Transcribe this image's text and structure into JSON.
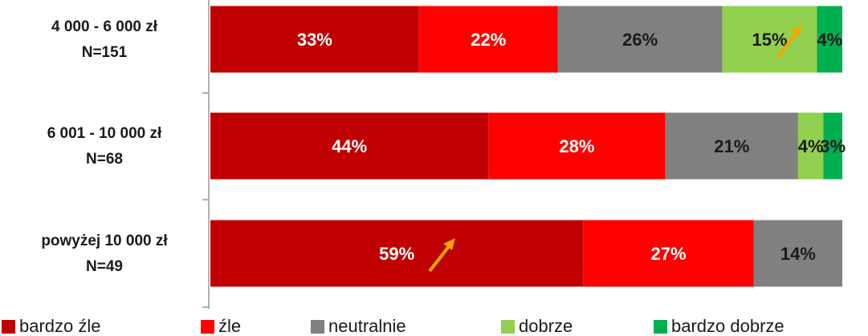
{
  "chart_data": {
    "type": "stacked-bar-horizontal",
    "categories": [
      [
        "4 000 - 6 000 zł",
        "N=151"
      ],
      [
        "6 001 - 10 000 zł",
        "N=68"
      ],
      [
        "powyżej 10 000 zł",
        "N=49"
      ]
    ],
    "series": [
      {
        "name": "bardzo źle",
        "color": "#c00000",
        "label_color": "#ffffff",
        "values": [
          33,
          44,
          59
        ],
        "value_labels": [
          "33%",
          "44%",
          "59%"
        ]
      },
      {
        "name": "źle",
        "color": "#ff0000",
        "label_color": "#ffffff",
        "values": [
          22,
          28,
          27
        ],
        "value_labels": [
          "22%",
          "28%",
          "27%"
        ]
      },
      {
        "name": "neutralnie",
        "color": "#808080",
        "label_color": "#1a1a1a",
        "values": [
          26,
          21,
          14
        ],
        "value_labels": [
          "26%",
          "21%",
          "14%"
        ]
      },
      {
        "name": "dobrze",
        "color": "#92d050",
        "label_color": "#1a1a1a",
        "values": [
          15,
          4,
          null
        ],
        "value_labels": [
          "15%",
          "4%",
          null
        ]
      },
      {
        "name": "bardzo dobrze",
        "color": "#00b050",
        "label_color": "#1a1a1a",
        "values": [
          4,
          3,
          null
        ],
        "value_labels": [
          "4%",
          "3%",
          null
        ]
      }
    ],
    "legend": "bottom"
  }
}
